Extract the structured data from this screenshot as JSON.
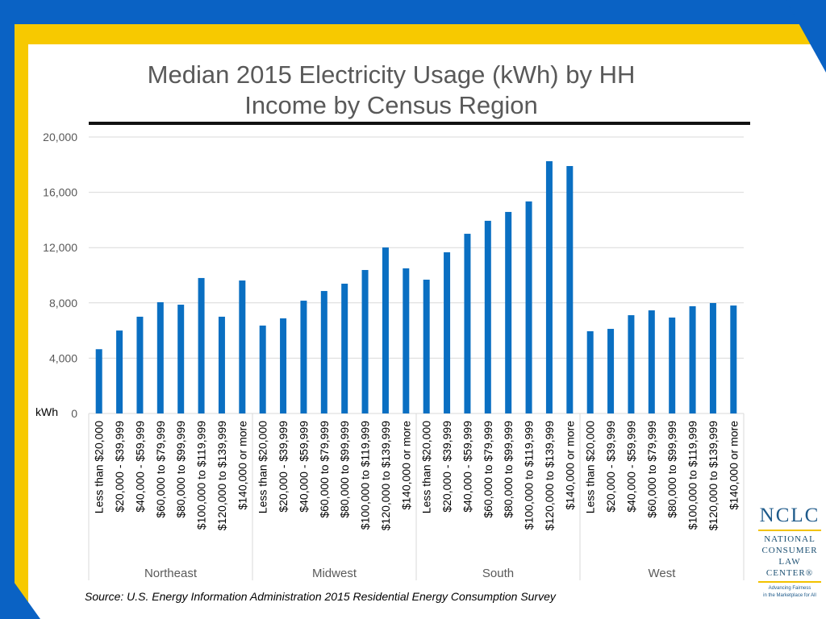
{
  "colors": {
    "bar": "#0a6fc2",
    "frame_blue": "#0a62c4",
    "frame_yellow": "#f7c900"
  },
  "chart_data": {
    "type": "bar",
    "title": "Median 2015 Electricity Usage (kWh) by HH Income by Census Region",
    "title_lines": [
      "Median 2015 Electricity Usage (kWh) by HH",
      "Income by Census Region"
    ],
    "ylabel": "kWh",
    "ylim": [
      0,
      20000
    ],
    "yticks": [
      "0",
      "4,000",
      "8,000",
      "12,000",
      "16,000",
      "20,000"
    ],
    "ytick_values": [
      0,
      4000,
      8000,
      12000,
      16000,
      20000
    ],
    "grid": true,
    "legend": "none",
    "categories": [
      "Less than $20,000",
      "$20,000 - $39,999",
      "$40,000 - $59,999",
      "$60,000 to $79,999",
      "$80,000 to $99,999",
      "$100,000 to $119,999",
      "$120,000 to $139,999",
      "$140,000 or more"
    ],
    "groups": [
      {
        "name": "Northeast",
        "values": [
          4650,
          6000,
          7000,
          8050,
          7870,
          9800,
          7000,
          9620
        ]
      },
      {
        "name": "Midwest",
        "values": [
          6360,
          6880,
          8160,
          8860,
          9390,
          10380,
          12010,
          10500
        ]
      },
      {
        "name": "South",
        "values": [
          9680,
          11660,
          13000,
          13940,
          14580,
          15340,
          18250,
          17900
        ]
      },
      {
        "name": "West",
        "values": [
          5950,
          6120,
          7110,
          7460,
          6940,
          7760,
          7990,
          7810
        ]
      }
    ]
  },
  "source": "Source: U.S. Energy Information Administration 2015 Residential Energy Consumption Survey",
  "logo": {
    "acronym": "NCLC",
    "name_lines": [
      "NATIONAL",
      "CONSUMER",
      "LAW",
      "CENTER®"
    ],
    "tagline_lines": [
      "Advancing Fairness",
      "in the Marketplace for All"
    ]
  }
}
